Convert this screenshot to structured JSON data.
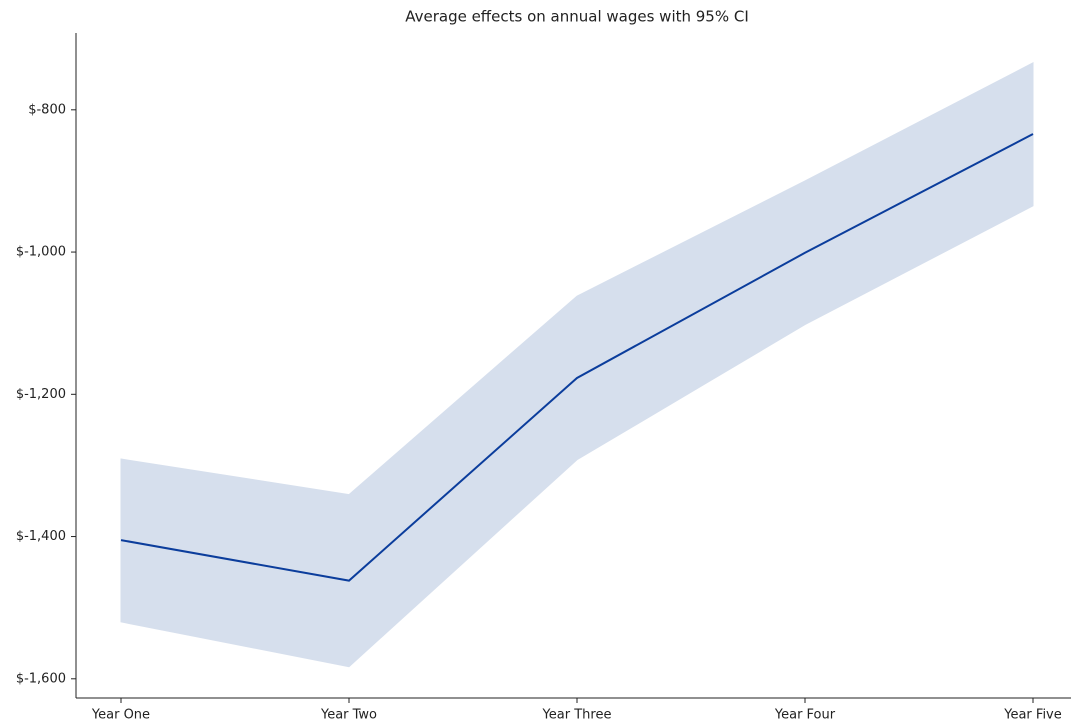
{
  "chart_data": {
    "type": "line",
    "title": "Average effects on annual wages with 95% CI",
    "categories": [
      "Year One",
      "Year Two",
      "Year Three",
      "Year Four",
      "Year Five"
    ],
    "series": [
      {
        "color": "#0b3d9c",
        "band_color": "#d6dfed",
        "values": [
          -1405,
          -1462,
          -1177,
          -1001,
          -834
        ],
        "ci_lower": [
          -1520,
          -1583,
          -1292,
          -1102,
          -935
        ],
        "ci_upper": [
          -1291,
          -1341,
          -1062,
          -900,
          -734
        ]
      }
    ],
    "ylim": [
      -1627,
      -692
    ],
    "yticks": [
      {
        "value": -1600,
        "label": "$-1,600"
      },
      {
        "value": -1400,
        "label": "$-1,400"
      },
      {
        "value": -1200,
        "label": "$-1,200"
      },
      {
        "value": -1000,
        "label": "$-1,000"
      },
      {
        "value": -800,
        "label": "$-800"
      }
    ]
  }
}
